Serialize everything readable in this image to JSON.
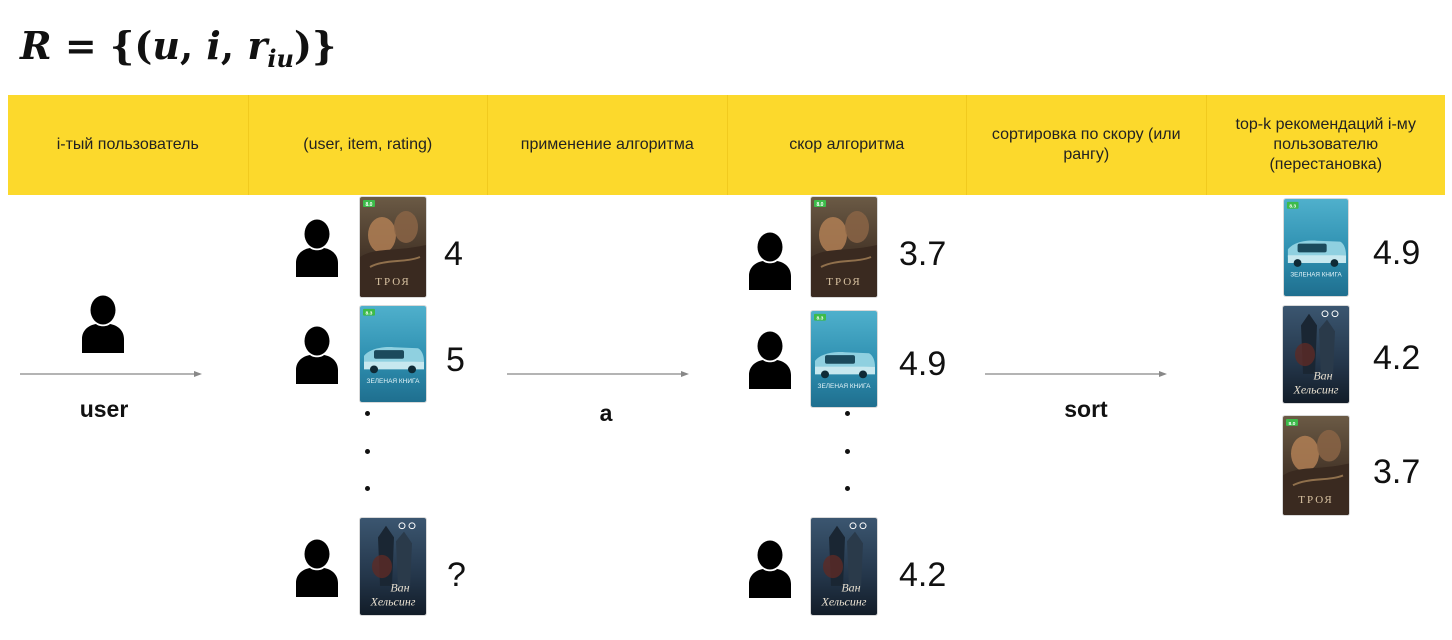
{
  "formula": {
    "lhs": "R",
    "eq": " = {(",
    "u": "u",
    "c1": ", ",
    "i": "i",
    "c2": ", ",
    "r": "r",
    "sub": "iu",
    "close": ")}"
  },
  "columns": [
    "i-тый пользователь",
    "(user, item, rating)",
    "применение алгоритма",
    "скор алгоритма",
    "сортировка по скору (или рангу)",
    "top-k рекомендаций i-му пользователю (перестановка)"
  ],
  "arrows": {
    "user": "user",
    "a": "a",
    "sort": "sort"
  },
  "ratings": [
    "4",
    "5",
    "?"
  ],
  "scores": [
    "3.7",
    "4.9",
    "4.2"
  ],
  "topk": [
    "4.9",
    "4.2",
    "3.7"
  ],
  "posters": {
    "troy": {
      "title": "ТРОЯ",
      "badge": "8.0"
    },
    "greenbook": {
      "title": "ЗЕЛЕНАЯ КНИГА",
      "badge": "8.3"
    },
    "vanhelsing": {
      "title_line1": "Ван",
      "title_line2": "Хельсинг"
    }
  }
}
